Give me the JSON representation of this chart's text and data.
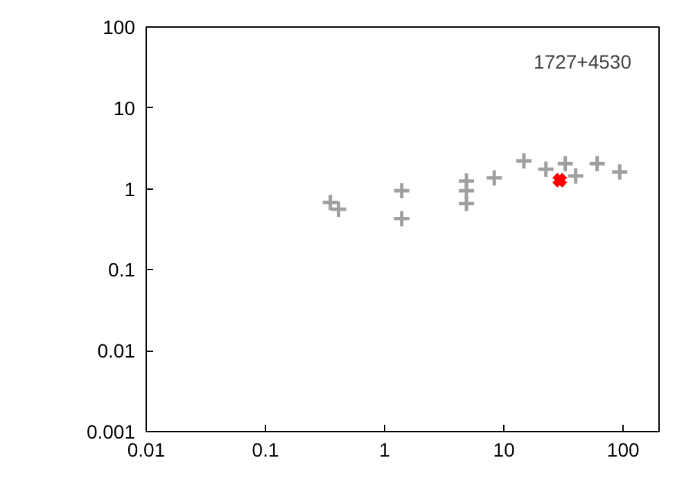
{
  "chart_data": {
    "type": "scatter",
    "log": "xy",
    "grid": false,
    "xlim": [
      0.01,
      200
    ],
    "ylim": [
      0.001,
      100
    ],
    "xticks": [
      0.01,
      0.1,
      1,
      10,
      100
    ],
    "yticks": [
      0.001,
      0.01,
      0.1,
      1,
      10,
      100
    ],
    "annotations": [
      "1727+4530"
    ],
    "series": [
      {
        "color": "#a0a0a0",
        "marker": "cross",
        "x": [
          0.35,
          0.41,
          1.39,
          1.39,
          4.85,
          4.85,
          4.85,
          8.3,
          14.7,
          22.5,
          32.7,
          40,
          60.5,
          93.6
        ],
        "values": [
          0.68,
          0.56,
          0.95,
          0.43,
          1.25,
          0.95,
          0.66,
          1.37,
          2.22,
          1.75,
          2.05,
          1.44,
          2.05,
          1.62
        ]
      },
      {
        "color": "#ff0000",
        "marker": "x",
        "x": [
          29.4
        ],
        "values": [
          1.28
        ]
      }
    ]
  }
}
